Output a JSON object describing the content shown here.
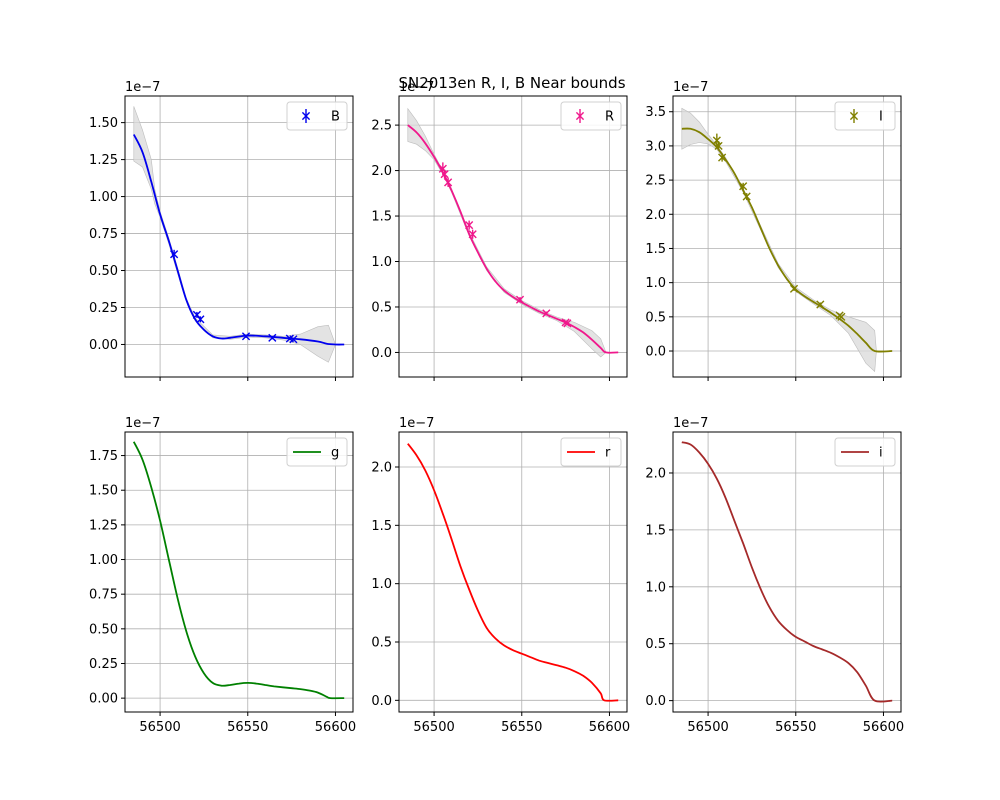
{
  "title": "SN2013en  R, I, B Near bounds",
  "chart_data": [
    {
      "type": "line",
      "legend": "B",
      "legend_placement": "top-right",
      "color": "#0000ee",
      "marker": "x",
      "band": true,
      "multiplier": "1e−7",
      "grid": true,
      "xlim": [
        56480,
        56610
      ],
      "ylim": [
        -0.22,
        1.68
      ],
      "xticks": [
        56500,
        56550,
        56600
      ],
      "show_xticklabels": false,
      "yticks": [
        0.0,
        0.25,
        0.5,
        0.75,
        1.0,
        1.25,
        1.5
      ],
      "ytick_labels": [
        "0.00",
        "0.25",
        "0.50",
        "0.75",
        "1.00",
        "1.25",
        "1.50"
      ],
      "curve": [
        [
          56485,
          1.42
        ],
        [
          56490,
          1.3
        ],
        [
          56495,
          1.1
        ],
        [
          56500,
          0.88
        ],
        [
          56505,
          0.7
        ],
        [
          56510,
          0.5
        ],
        [
          56515,
          0.3
        ],
        [
          56520,
          0.17
        ],
        [
          56525,
          0.1
        ],
        [
          56530,
          0.055
        ],
        [
          56535,
          0.04
        ],
        [
          56540,
          0.045
        ],
        [
          56550,
          0.06
        ],
        [
          56560,
          0.055
        ],
        [
          56570,
          0.045
        ],
        [
          56580,
          0.035
        ],
        [
          56590,
          0.02
        ],
        [
          56595,
          0.005
        ],
        [
          56600,
          0.0
        ],
        [
          56605,
          0.0
        ]
      ],
      "band_upper": [
        [
          56485,
          1.61
        ],
        [
          56490,
          1.45
        ],
        [
          56495,
          1.25
        ],
        [
          56497,
          1.05
        ],
        [
          56500,
          0.9
        ],
        [
          56505,
          0.72
        ],
        [
          56510,
          0.52
        ],
        [
          56515,
          0.31
        ],
        [
          56520,
          0.18
        ],
        [
          56530,
          0.065
        ],
        [
          56540,
          0.055
        ],
        [
          56550,
          0.07
        ],
        [
          56560,
          0.065
        ],
        [
          56570,
          0.055
        ],
        [
          56580,
          0.07
        ],
        [
          56590,
          0.12
        ],
        [
          56596,
          0.13
        ],
        [
          56600,
          0.0
        ]
      ],
      "band_lower": [
        [
          56485,
          1.24
        ],
        [
          56490,
          1.2
        ],
        [
          56495,
          1.05
        ],
        [
          56497,
          0.95
        ],
        [
          56500,
          0.86
        ],
        [
          56505,
          0.68
        ],
        [
          56510,
          0.48
        ],
        [
          56515,
          0.29
        ],
        [
          56520,
          0.16
        ],
        [
          56530,
          0.045
        ],
        [
          56540,
          0.035
        ],
        [
          56550,
          0.05
        ],
        [
          56560,
          0.045
        ],
        [
          56570,
          0.03
        ],
        [
          56580,
          0.0
        ],
        [
          56590,
          -0.08
        ],
        [
          56596,
          -0.12
        ],
        [
          56600,
          0.0
        ]
      ],
      "points": [
        [
          56508,
          0.61,
          0.03
        ],
        [
          56521,
          0.2,
          0.02
        ],
        [
          56523,
          0.17,
          0.02
        ],
        [
          56549,
          0.055,
          0.01
        ],
        [
          56564,
          0.045,
          0.01
        ],
        [
          56574,
          0.04,
          0.01
        ],
        [
          56576,
          0.035,
          0.01
        ]
      ]
    },
    {
      "type": "line",
      "legend": "R",
      "legend_placement": "top-right",
      "color": "#f0188c",
      "marker": "x",
      "band": true,
      "multiplier": "1e−7",
      "grid": true,
      "xlim": [
        56480,
        56610
      ],
      "ylim": [
        -0.27,
        2.82
      ],
      "xticks": [
        56500,
        56550,
        56600
      ],
      "show_xticklabels": false,
      "yticks": [
        0.0,
        0.5,
        1.0,
        1.5,
        2.0,
        2.5
      ],
      "ytick_labels": [
        "0.0",
        "0.5",
        "1.0",
        "1.5",
        "2.0",
        "2.5"
      ],
      "curve": [
        [
          56485,
          2.5
        ],
        [
          56490,
          2.42
        ],
        [
          56495,
          2.3
        ],
        [
          56500,
          2.15
        ],
        [
          56505,
          1.98
        ],
        [
          56510,
          1.78
        ],
        [
          56515,
          1.55
        ],
        [
          56520,
          1.3
        ],
        [
          56525,
          1.1
        ],
        [
          56530,
          0.92
        ],
        [
          56535,
          0.78
        ],
        [
          56540,
          0.68
        ],
        [
          56545,
          0.61
        ],
        [
          56550,
          0.55
        ],
        [
          56555,
          0.5
        ],
        [
          56560,
          0.45
        ],
        [
          56565,
          0.41
        ],
        [
          56570,
          0.37
        ],
        [
          56575,
          0.33
        ],
        [
          56580,
          0.28
        ],
        [
          56585,
          0.22
        ],
        [
          56590,
          0.14
        ],
        [
          56595,
          0.05
        ],
        [
          56598,
          0.0
        ],
        [
          56605,
          0.0
        ]
      ],
      "band_upper": [
        [
          56485,
          2.68
        ],
        [
          56490,
          2.55
        ],
        [
          56495,
          2.38
        ],
        [
          56500,
          2.18
        ],
        [
          56505,
          2.0
        ],
        [
          56510,
          1.8
        ],
        [
          56520,
          1.32
        ],
        [
          56530,
          0.94
        ],
        [
          56540,
          0.7
        ],
        [
          56550,
          0.57
        ],
        [
          56560,
          0.47
        ],
        [
          56570,
          0.39
        ],
        [
          56580,
          0.33
        ],
        [
          56590,
          0.24
        ],
        [
          56595,
          0.15
        ],
        [
          56598,
          0.0
        ]
      ],
      "band_lower": [
        [
          56485,
          2.32
        ],
        [
          56490,
          2.29
        ],
        [
          56495,
          2.22
        ],
        [
          56500,
          2.12
        ],
        [
          56505,
          1.96
        ],
        [
          56510,
          1.76
        ],
        [
          56520,
          1.28
        ],
        [
          56530,
          0.9
        ],
        [
          56540,
          0.66
        ],
        [
          56550,
          0.53
        ],
        [
          56560,
          0.43
        ],
        [
          56570,
          0.35
        ],
        [
          56580,
          0.23
        ],
        [
          56590,
          0.04
        ],
        [
          56595,
          -0.05
        ],
        [
          56598,
          0.0
        ]
      ],
      "points": [
        [
          56505,
          2.02,
          0.07
        ],
        [
          56506,
          1.96,
          0.05
        ],
        [
          56508,
          1.87,
          0.05
        ],
        [
          56520,
          1.4,
          0.05
        ],
        [
          56522,
          1.3,
          0.05
        ],
        [
          56549,
          0.58,
          0.03
        ],
        [
          56564,
          0.43,
          0.02
        ],
        [
          56575,
          0.33,
          0.02
        ],
        [
          56576,
          0.32,
          0.02
        ]
      ]
    },
    {
      "type": "line",
      "legend": "I",
      "legend_placement": "top-right",
      "color": "#808000",
      "marker": "x",
      "band": true,
      "multiplier": "1e−7",
      "grid": true,
      "xlim": [
        56480,
        56610
      ],
      "ylim": [
        -0.38,
        3.73
      ],
      "xticks": [
        56500,
        56550,
        56600
      ],
      "show_xticklabels": false,
      "yticks": [
        0.0,
        0.5,
        1.0,
        1.5,
        2.0,
        2.5,
        3.0,
        3.5
      ],
      "ytick_labels": [
        "0.0",
        "0.5",
        "1.0",
        "1.5",
        "2.0",
        "2.5",
        "3.0",
        "3.5"
      ],
      "curve": [
        [
          56485,
          3.25
        ],
        [
          56490,
          3.25
        ],
        [
          56495,
          3.2
        ],
        [
          56500,
          3.1
        ],
        [
          56505,
          2.98
        ],
        [
          56510,
          2.8
        ],
        [
          56515,
          2.6
        ],
        [
          56520,
          2.35
        ],
        [
          56525,
          2.1
        ],
        [
          56530,
          1.8
        ],
        [
          56535,
          1.5
        ],
        [
          56540,
          1.25
        ],
        [
          56545,
          1.05
        ],
        [
          56550,
          0.9
        ],
        [
          56555,
          0.8
        ],
        [
          56560,
          0.72
        ],
        [
          56565,
          0.64
        ],
        [
          56570,
          0.56
        ],
        [
          56575,
          0.47
        ],
        [
          56580,
          0.37
        ],
        [
          56585,
          0.25
        ],
        [
          56590,
          0.12
        ],
        [
          56595,
          0.0
        ],
        [
          56605,
          0.0
        ]
      ],
      "band_upper": [
        [
          56485,
          3.55
        ],
        [
          56490,
          3.48
        ],
        [
          56495,
          3.35
        ],
        [
          56500,
          3.17
        ],
        [
          56505,
          3.01
        ],
        [
          56510,
          2.83
        ],
        [
          56520,
          2.38
        ],
        [
          56530,
          1.83
        ],
        [
          56540,
          1.28
        ],
        [
          56550,
          0.93
        ],
        [
          56560,
          0.75
        ],
        [
          56570,
          0.6
        ],
        [
          56580,
          0.5
        ],
        [
          56590,
          0.42
        ],
        [
          56595,
          0.3
        ],
        [
          56596,
          0.0
        ]
      ],
      "band_lower": [
        [
          56485,
          2.95
        ],
        [
          56490,
          3.02
        ],
        [
          56495,
          3.05
        ],
        [
          56500,
          3.03
        ],
        [
          56505,
          2.95
        ],
        [
          56510,
          2.77
        ],
        [
          56520,
          2.32
        ],
        [
          56530,
          1.77
        ],
        [
          56540,
          1.22
        ],
        [
          56550,
          0.87
        ],
        [
          56560,
          0.69
        ],
        [
          56570,
          0.52
        ],
        [
          56580,
          0.26
        ],
        [
          56590,
          -0.18
        ],
        [
          56595,
          -0.3
        ],
        [
          56596,
          0.0
        ]
      ],
      "points": [
        [
          56505,
          3.08,
          0.1
        ],
        [
          56506,
          3.0,
          0.07
        ],
        [
          56508,
          2.83,
          0.06
        ],
        [
          56520,
          2.41,
          0.05
        ],
        [
          56522,
          2.26,
          0.05
        ],
        [
          56549,
          0.91,
          0.03
        ],
        [
          56564,
          0.68,
          0.03
        ],
        [
          56575,
          0.52,
          0.02
        ],
        [
          56576,
          0.5,
          0.02
        ]
      ]
    },
    {
      "type": "line",
      "legend": "g",
      "legend_placement": "top-right",
      "color": "#008000",
      "marker": "",
      "band": false,
      "multiplier": "1e−7",
      "grid": true,
      "xlim": [
        56480,
        56610
      ],
      "ylim": [
        -0.1,
        1.92
      ],
      "xticks": [
        56500,
        56550,
        56600
      ],
      "xtick_labels": [
        "56500",
        "56550",
        "56600"
      ],
      "show_xticklabels": true,
      "yticks": [
        0.0,
        0.25,
        0.5,
        0.75,
        1.0,
        1.25,
        1.5,
        1.75
      ],
      "ytick_labels": [
        "0.00",
        "0.25",
        "0.50",
        "0.75",
        "1.00",
        "1.25",
        "1.50",
        "1.75"
      ],
      "curve": [
        [
          56485,
          1.85
        ],
        [
          56490,
          1.72
        ],
        [
          56495,
          1.52
        ],
        [
          56500,
          1.28
        ],
        [
          56505,
          1.0
        ],
        [
          56510,
          0.72
        ],
        [
          56515,
          0.48
        ],
        [
          56520,
          0.3
        ],
        [
          56525,
          0.18
        ],
        [
          56530,
          0.11
        ],
        [
          56535,
          0.09
        ],
        [
          56540,
          0.095
        ],
        [
          56545,
          0.105
        ],
        [
          56550,
          0.11
        ],
        [
          56555,
          0.105
        ],
        [
          56560,
          0.095
        ],
        [
          56565,
          0.085
        ],
        [
          56570,
          0.078
        ],
        [
          56575,
          0.072
        ],
        [
          56580,
          0.065
        ],
        [
          56585,
          0.055
        ],
        [
          56590,
          0.04
        ],
        [
          56595,
          0.01
        ],
        [
          56597,
          0.0
        ],
        [
          56605,
          0.0
        ]
      ],
      "points": []
    },
    {
      "type": "line",
      "legend": "r",
      "legend_placement": "top-right",
      "color": "#ff0000",
      "marker": "",
      "band": false,
      "multiplier": "1e−7",
      "grid": true,
      "xlim": [
        56480,
        56610
      ],
      "ylim": [
        -0.1,
        2.3
      ],
      "xticks": [
        56500,
        56550,
        56600
      ],
      "xtick_labels": [
        "56500",
        "56550",
        "56600"
      ],
      "show_xticklabels": true,
      "yticks": [
        0.0,
        0.5,
        1.0,
        1.5,
        2.0
      ],
      "ytick_labels": [
        "0.0",
        "0.5",
        "1.0",
        "1.5",
        "2.0"
      ],
      "curve": [
        [
          56485,
          2.2
        ],
        [
          56490,
          2.1
        ],
        [
          56495,
          1.97
        ],
        [
          56500,
          1.8
        ],
        [
          56505,
          1.6
        ],
        [
          56510,
          1.38
        ],
        [
          56515,
          1.15
        ],
        [
          56520,
          0.95
        ],
        [
          56525,
          0.77
        ],
        [
          56530,
          0.62
        ],
        [
          56535,
          0.53
        ],
        [
          56540,
          0.47
        ],
        [
          56545,
          0.43
        ],
        [
          56550,
          0.4
        ],
        [
          56555,
          0.37
        ],
        [
          56560,
          0.34
        ],
        [
          56565,
          0.32
        ],
        [
          56570,
          0.3
        ],
        [
          56575,
          0.28
        ],
        [
          56580,
          0.25
        ],
        [
          56585,
          0.21
        ],
        [
          56590,
          0.15
        ],
        [
          56595,
          0.06
        ],
        [
          56597,
          0.0
        ],
        [
          56605,
          0.0
        ]
      ],
      "points": []
    },
    {
      "type": "line",
      "legend": "i",
      "legend_placement": "top-right",
      "color": "#a52a2a",
      "marker": "",
      "band": false,
      "multiplier": "1e−7",
      "grid": true,
      "xlim": [
        56480,
        56610
      ],
      "ylim": [
        -0.1,
        2.36
      ],
      "xticks": [
        56500,
        56550,
        56600
      ],
      "xtick_labels": [
        "56500",
        "56550",
        "56600"
      ],
      "show_xticklabels": true,
      "yticks": [
        0.0,
        0.5,
        1.0,
        1.5,
        2.0
      ],
      "ytick_labels": [
        "0.0",
        "0.5",
        "1.0",
        "1.5",
        "2.0"
      ],
      "curve": [
        [
          56485,
          2.27
        ],
        [
          56490,
          2.25
        ],
        [
          56495,
          2.18
        ],
        [
          56500,
          2.08
        ],
        [
          56505,
          1.95
        ],
        [
          56510,
          1.78
        ],
        [
          56515,
          1.58
        ],
        [
          56520,
          1.38
        ],
        [
          56525,
          1.17
        ],
        [
          56530,
          0.98
        ],
        [
          56535,
          0.82
        ],
        [
          56540,
          0.7
        ],
        [
          56545,
          0.62
        ],
        [
          56550,
          0.56
        ],
        [
          56555,
          0.52
        ],
        [
          56560,
          0.48
        ],
        [
          56565,
          0.45
        ],
        [
          56570,
          0.42
        ],
        [
          56575,
          0.38
        ],
        [
          56580,
          0.33
        ],
        [
          56585,
          0.25
        ],
        [
          56590,
          0.13
        ],
        [
          56595,
          0.0
        ],
        [
          56605,
          0.0
        ]
      ],
      "points": []
    }
  ]
}
